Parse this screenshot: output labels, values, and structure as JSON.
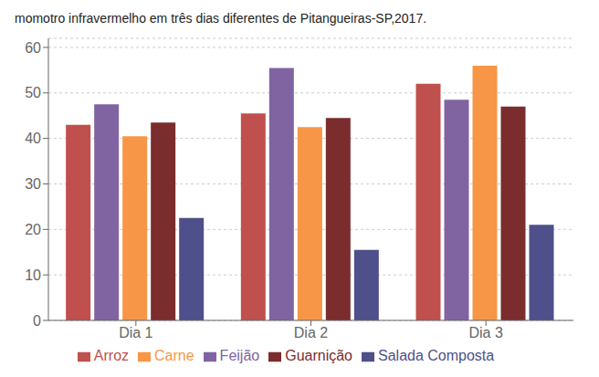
{
  "chart_data": {
    "type": "bar",
    "title": "momotro infravermelho em três dias diferentes de Pitangueiras-SP,2017.",
    "categories": [
      "Dia 1",
      "Dia 2",
      "Dia 3"
    ],
    "series": [
      {
        "name": "Arroz",
        "values": [
          43,
          45.5,
          52
        ],
        "color": "#C0504D"
      },
      {
        "name": "Feijão",
        "values": [
          47.5,
          55.5,
          48.5
        ],
        "color": "#8064A2"
      },
      {
        "name": "Carne",
        "values": [
          40.5,
          42.5,
          56
        ],
        "color": "#F79646"
      },
      {
        "name": "Guarnição",
        "values": [
          43.5,
          44.5,
          47
        ],
        "color": "#7B2C2C"
      },
      {
        "name": "Salada Composta",
        "values": [
          22.5,
          15.5,
          21
        ],
        "color": "#4F4F8B"
      }
    ],
    "ylim": [
      0,
      62
    ],
    "yticks": [
      0,
      10,
      20,
      30,
      40,
      50,
      60
    ],
    "grid": true,
    "legend": "bottom"
  }
}
